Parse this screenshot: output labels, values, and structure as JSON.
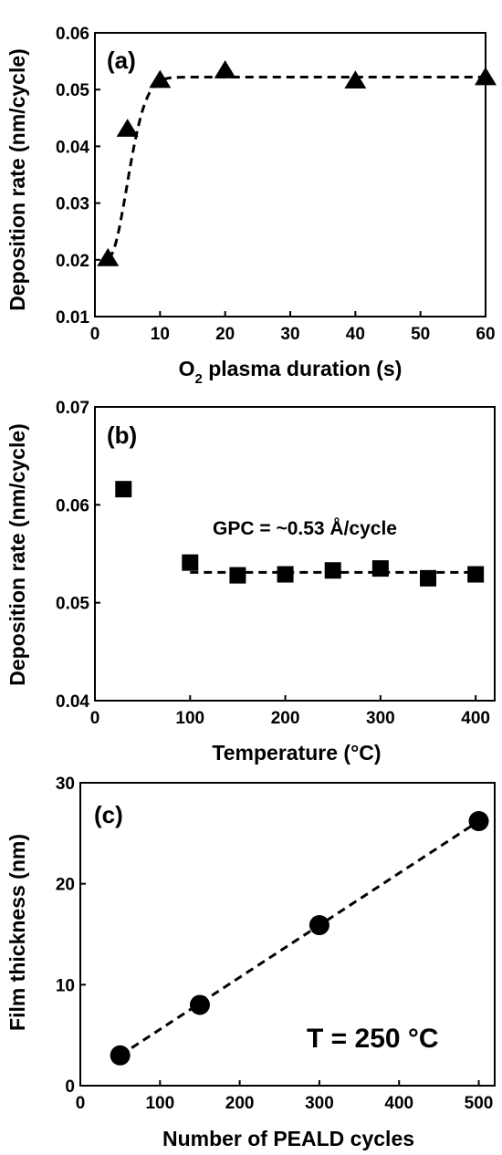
{
  "chart_data": [
    {
      "type": "scatter",
      "panel_label": "(a)",
      "xlabel_main": "O",
      "xlabel_sub": "2",
      "xlabel_rest": " plasma duration (s)",
      "ylabel": "Deposition rate (nm/cycle)",
      "xlim": [
        0,
        60
      ],
      "ylim": [
        0.01,
        0.06
      ],
      "xticks": [
        0,
        10,
        20,
        30,
        40,
        50,
        60
      ],
      "yticks": [
        "0.01",
        "0.02",
        "0.03",
        "0.04",
        "0.05",
        "0.06"
      ],
      "marker": "triangle",
      "series": [
        {
          "x": [
            2,
            5,
            10,
            20,
            40,
            60
          ],
          "y": [
            0.0203,
            0.0431,
            0.0517,
            0.0534,
            0.0516,
            0.0522
          ]
        }
      ],
      "fit": {
        "style": "dashed",
        "form": "saturating",
        "plateau": 0.0522,
        "x_start": 2
      }
    },
    {
      "type": "scatter",
      "panel_label": "(b)",
      "xlabel": "Temperature (°C)",
      "ylabel": "Deposition rate (nm/cycle)",
      "xlim": [
        0,
        420
      ],
      "ylim": [
        0.04,
        0.07
      ],
      "xticks": [
        0,
        100,
        200,
        300,
        400
      ],
      "yticks": [
        "0.04",
        "0.05",
        "0.06",
        "0.07"
      ],
      "marker": "square",
      "annotation": "GPC = ~0.53 Å/cycle",
      "series": [
        {
          "x": [
            30,
            100,
            150,
            200,
            250,
            300,
            350,
            400
          ],
          "y": [
            0.0616,
            0.0541,
            0.0528,
            0.0529,
            0.0533,
            0.0535,
            0.0525,
            0.0529
          ]
        }
      ],
      "fit": {
        "style": "dashed",
        "form": "constant",
        "y": 0.0531,
        "x_range": [
          100,
          400
        ]
      }
    },
    {
      "type": "scatter",
      "panel_label": "(c)",
      "xlabel": "Number of PEALD cycles",
      "ylabel": "Film thickness (nm)",
      "xlim": [
        0,
        520
      ],
      "ylim": [
        0,
        30
      ],
      "xticks": [
        0,
        100,
        200,
        300,
        400,
        500
      ],
      "yticks": [
        "0",
        "10",
        "20",
        "30"
      ],
      "marker": "circle",
      "annotation": "T = 250 °C",
      "series": [
        {
          "x": [
            50,
            150,
            300,
            500
          ],
          "y": [
            3.0,
            8.0,
            15.9,
            26.2
          ]
        }
      ],
      "fit": {
        "style": "dashed",
        "form": "linear",
        "x_range": [
          50,
          500
        ],
        "y_range": [
          3.0,
          26.2
        ]
      }
    }
  ]
}
